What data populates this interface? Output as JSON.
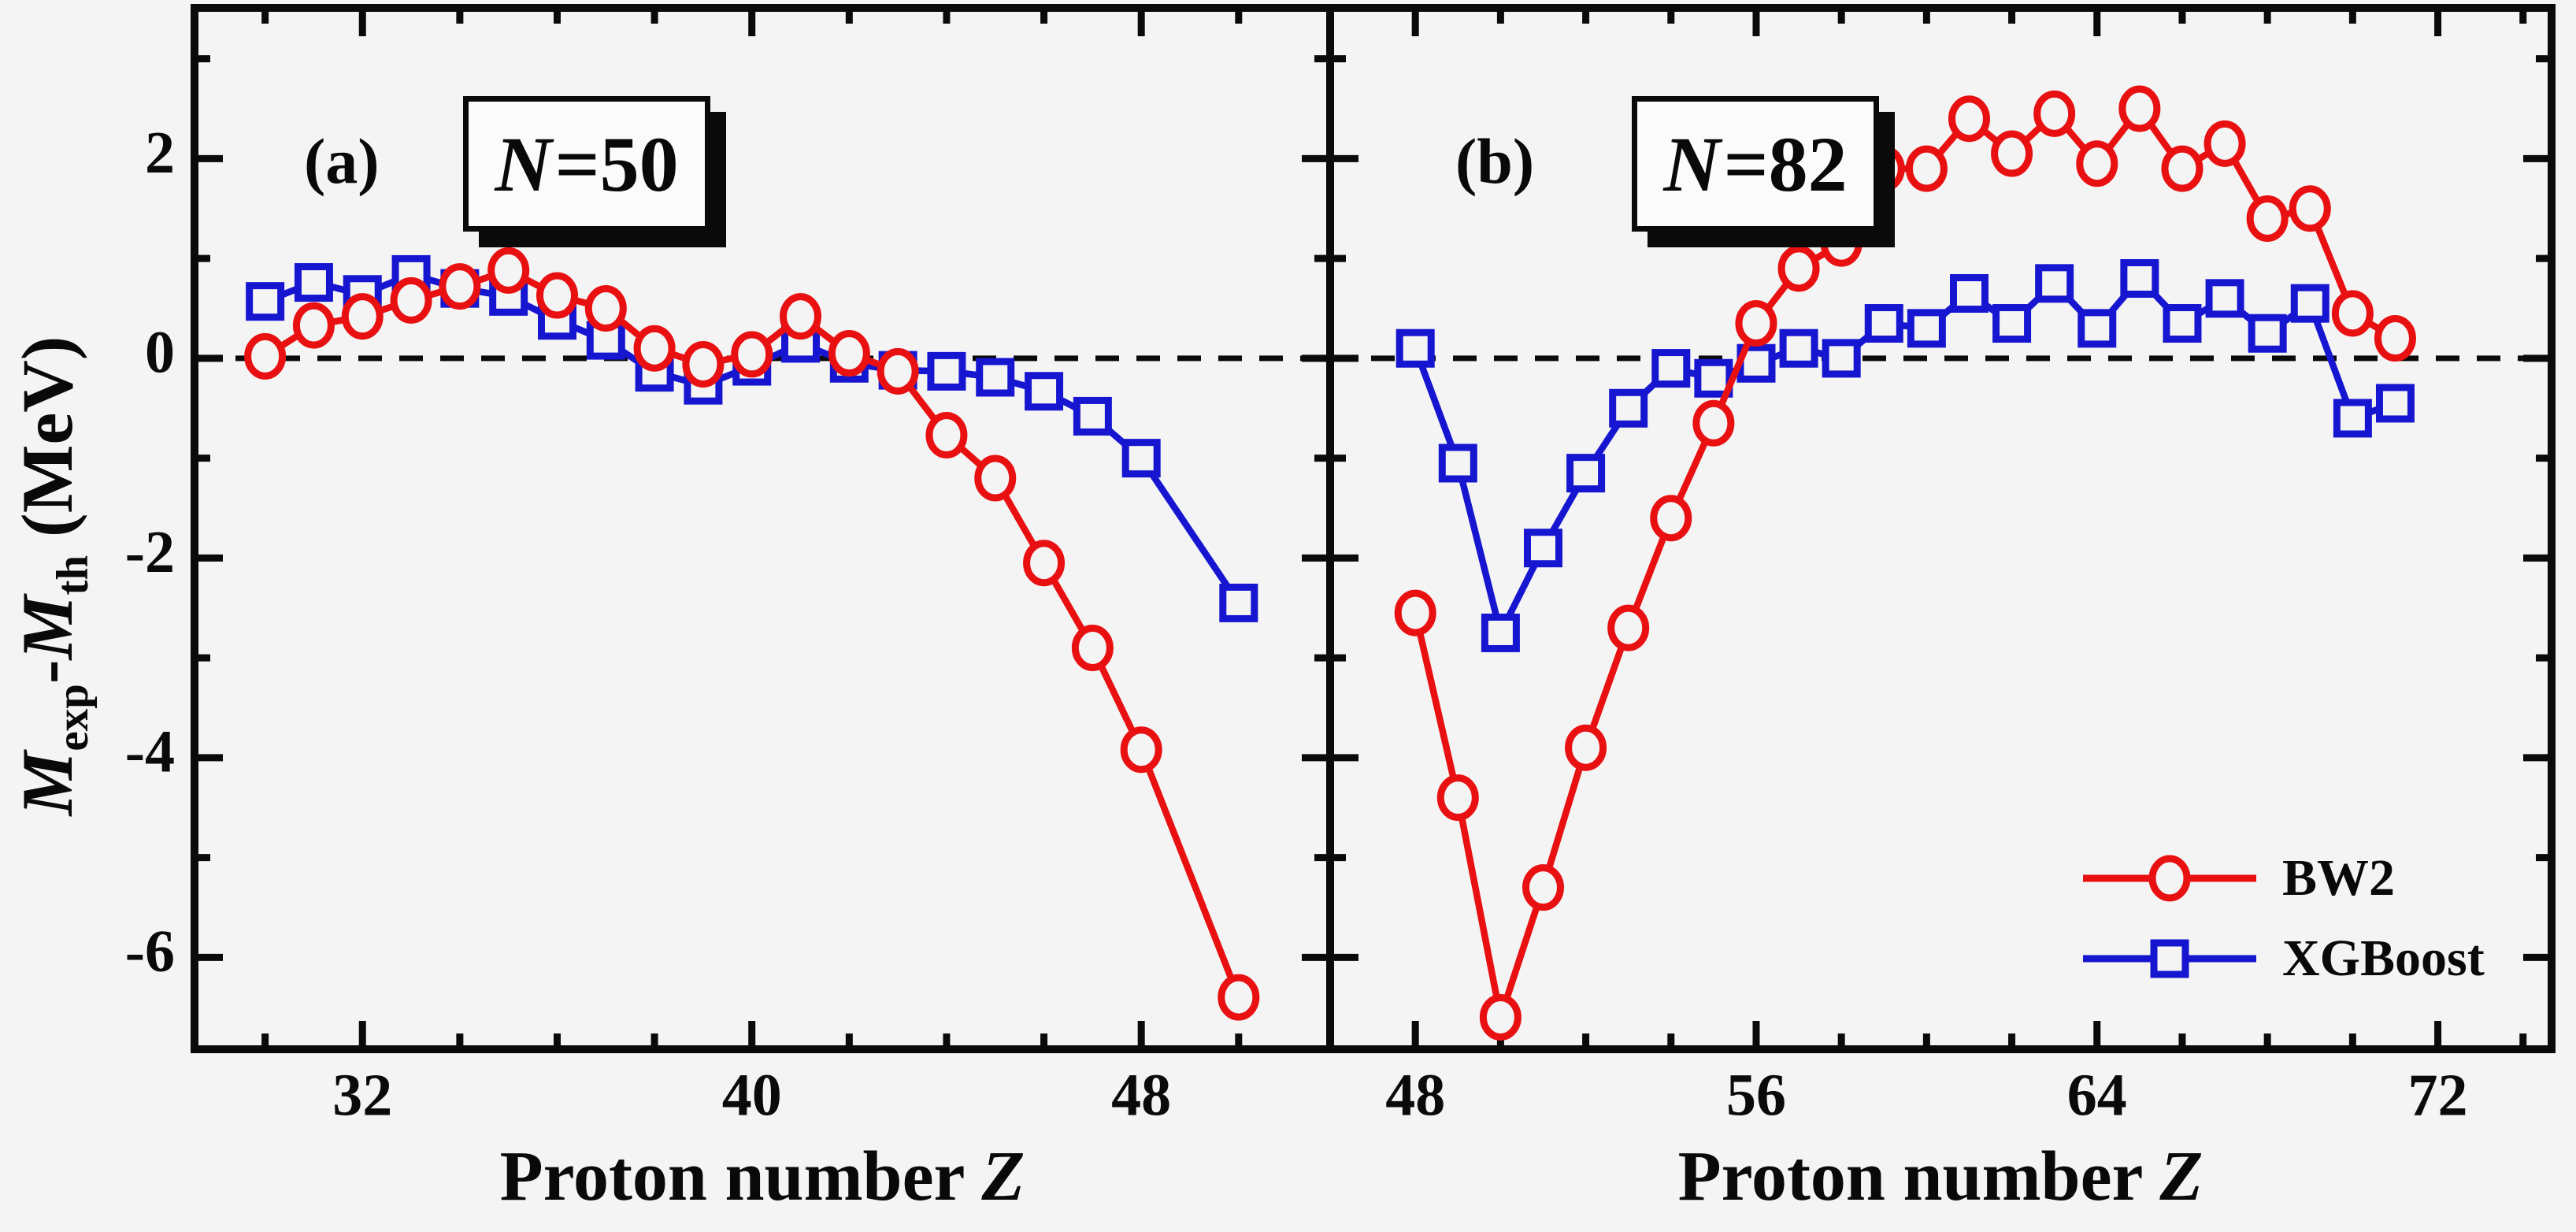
{
  "figure": {
    "background": "#f5f4f5",
    "axis_color": "#0a0a0a",
    "accent_red": "#e81010",
    "accent_blue": "#1616d1",
    "ylabel": {
      "m1": "M",
      "sub1": "exp",
      "dash": "-",
      "m2": "M",
      "sub2": "th",
      "unit": " (MeV)"
    },
    "xlabel": {
      "text": "Proton number ",
      "variable": "Z"
    },
    "legend": [
      {
        "label": "BW2",
        "color": "#e81010",
        "marker": "circle"
      },
      {
        "label": "XGBoost",
        "color": "#1616d1",
        "marker": "square"
      }
    ]
  },
  "chart_data": [
    {
      "type": "line",
      "panel_label": "(a)",
      "annotation": {
        "prefix": "N",
        "rest": "=50"
      },
      "xlim": [
        28.55,
        51.88
      ],
      "ylim": [
        -6.92,
        3.51
      ],
      "xticks_major": [
        32,
        40,
        48
      ],
      "xticks_minor": [
        30,
        34,
        36,
        38,
        42,
        44,
        46,
        50
      ],
      "yticks_major": [
        2,
        0,
        -2,
        -4,
        -6
      ],
      "yticks_minor": [
        3,
        1,
        -1,
        -3,
        -5
      ],
      "zero_line": 0,
      "x": [
        30,
        31,
        32,
        33,
        34,
        35,
        36,
        37,
        38,
        39,
        40,
        41,
        42,
        43,
        44,
        45,
        46,
        47,
        48,
        50
      ],
      "series": [
        {
          "name": "BW2",
          "color": "#e81010",
          "marker": "circle",
          "values": [
            0.02,
            0.33,
            0.42,
            0.58,
            0.72,
            0.88,
            0.63,
            0.5,
            0.1,
            -0.06,
            0.04,
            0.42,
            0.05,
            -0.13,
            -0.77,
            -1.2,
            -2.05,
            -2.9,
            -3.92,
            -6.4
          ]
        },
        {
          "name": "XGBoost",
          "color": "#1616d1",
          "marker": "square",
          "values": [
            0.57,
            0.76,
            0.64,
            0.84,
            0.7,
            0.62,
            0.38,
            0.18,
            -0.14,
            -0.27,
            -0.08,
            0.15,
            -0.05,
            -0.12,
            -0.13,
            -0.19,
            -0.33,
            -0.58,
            -1.0,
            -2.45
          ]
        }
      ]
    },
    {
      "type": "line",
      "panel_label": "(b)",
      "annotation": {
        "prefix": "N",
        "rest": "=82"
      },
      "xlim": [
        46.0,
        74.67
      ],
      "ylim": [
        -6.92,
        3.51
      ],
      "xticks_major": [
        48,
        56,
        64,
        72
      ],
      "xticks_minor": [
        50,
        52,
        54,
        58,
        60,
        62,
        66,
        68,
        70,
        74
      ],
      "yticks_major": [
        2,
        0,
        -2,
        -4,
        -6
      ],
      "yticks_minor": [
        3,
        1,
        -1,
        -3,
        -5
      ],
      "zero_line": 0,
      "x": [
        48,
        49,
        50,
        51,
        52,
        53,
        54,
        55,
        56,
        57,
        58,
        59,
        60,
        61,
        62,
        63,
        64,
        65,
        66,
        67,
        68,
        69,
        70,
        71
      ],
      "series": [
        {
          "name": "BW2",
          "color": "#e81010",
          "marker": "circle",
          "values": [
            -2.55,
            -4.4,
            -6.6,
            -5.3,
            -3.9,
            -2.7,
            -1.6,
            -0.65,
            0.35,
            0.9,
            1.15,
            1.9,
            1.9,
            2.4,
            2.05,
            2.45,
            1.95,
            2.5,
            1.9,
            2.15,
            1.4,
            1.5,
            0.45,
            0.2
          ]
        },
        {
          "name": "XGBoost",
          "color": "#1616d1",
          "marker": "square",
          "values": [
            0.1,
            -1.05,
            -2.75,
            -1.9,
            -1.15,
            -0.5,
            -0.1,
            -0.2,
            -0.05,
            0.1,
            0.0,
            0.35,
            0.3,
            0.65,
            0.35,
            0.75,
            0.3,
            0.8,
            0.35,
            0.6,
            0.25,
            0.55,
            -0.6,
            -0.45
          ]
        }
      ]
    }
  ]
}
